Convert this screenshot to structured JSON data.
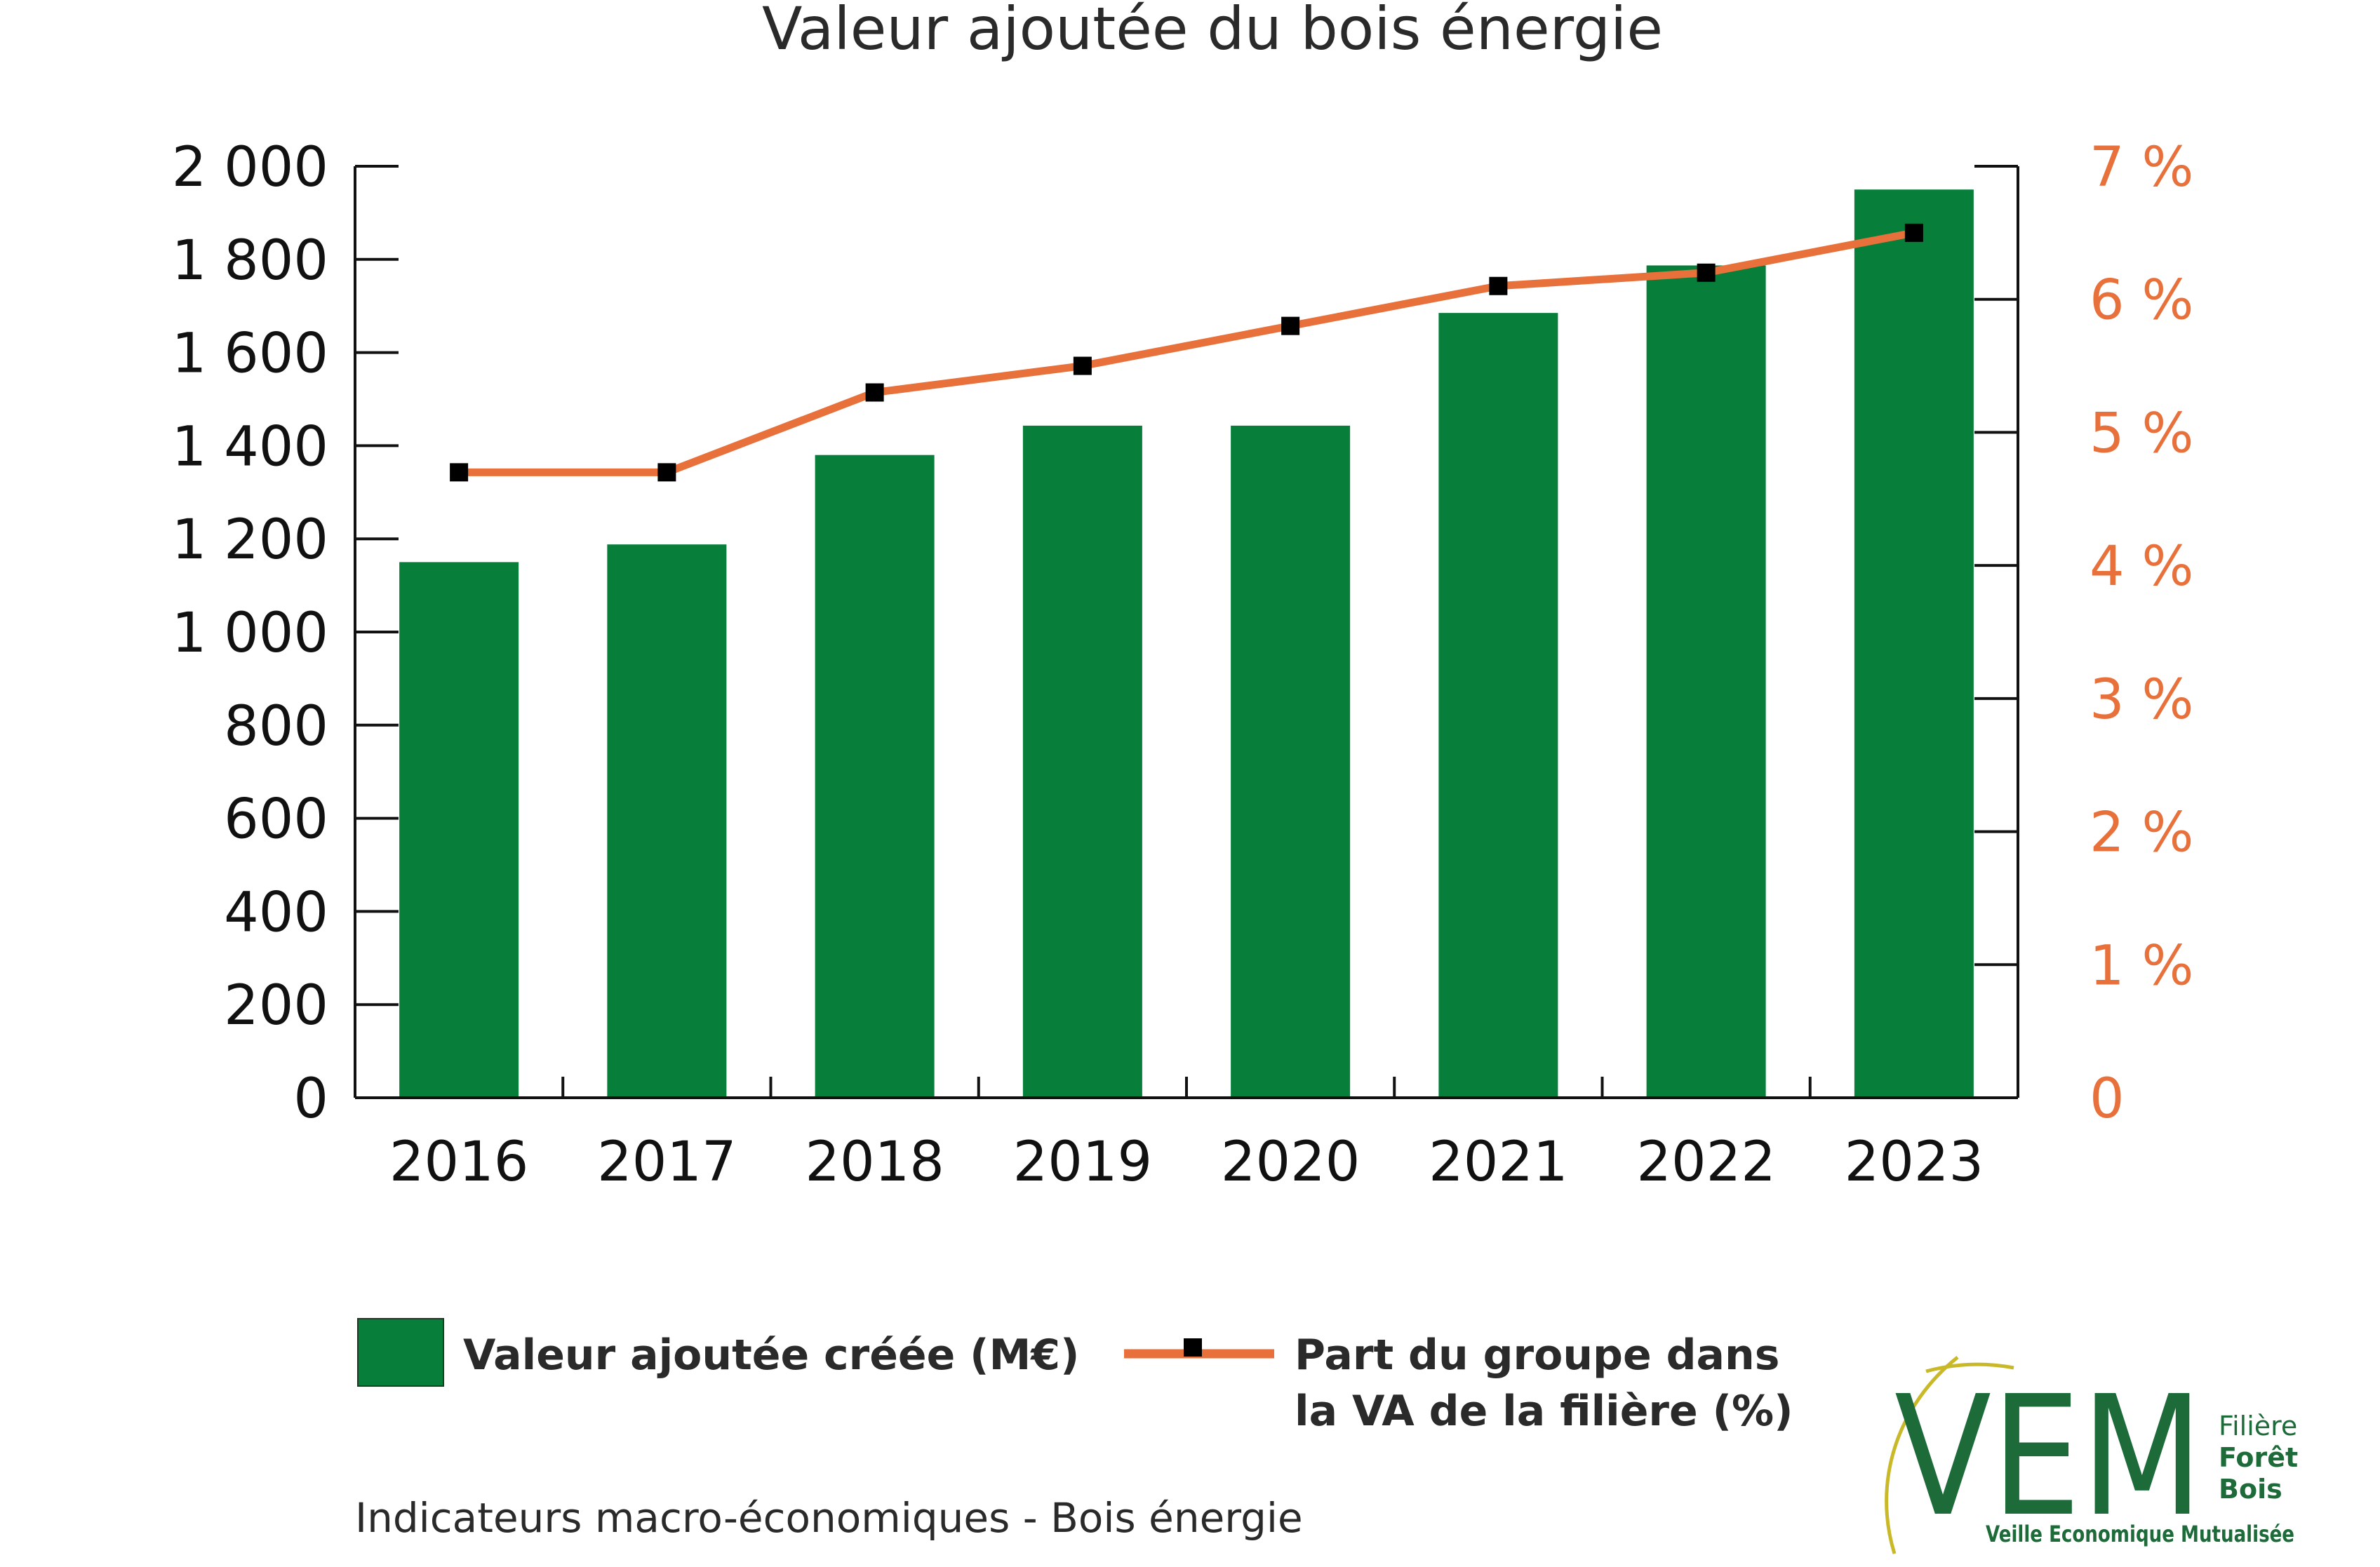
{
  "chart_data": {
    "type": "bar",
    "title": "Valeur ajoutée du bois énergie",
    "categories": [
      "2016",
      "2017",
      "2018",
      "2019",
      "2020",
      "2021",
      "2022",
      "2023"
    ],
    "series": [
      {
        "name": "Valeur ajoutée créée (M€)",
        "type": "bar",
        "axis": "left",
        "color": "#077f3a",
        "values": [
          1150,
          1188,
          1380,
          1443,
          1443,
          1685,
          1787,
          1950
        ]
      },
      {
        "name": "Part du groupe dans la VA de la filière (%)",
        "type": "line",
        "axis": "right",
        "color": "#e8703a",
        "marker_color": "#000000",
        "values": [
          4.7,
          4.7,
          5.3,
          5.5,
          5.8,
          6.1,
          6.2,
          6.5
        ]
      }
    ],
    "y_left": {
      "ylim": [
        0,
        2000
      ],
      "ticks": [
        0,
        200,
        400,
        600,
        800,
        1000,
        1200,
        1400,
        1600,
        1800,
        2000
      ],
      "tick_labels": [
        "0",
        "200",
        "400",
        "600",
        "800",
        "1 000",
        "1 200",
        "1 400",
        "1 600",
        "1 800",
        "2 000"
      ]
    },
    "y_right": {
      "ylim": [
        0,
        7
      ],
      "ticks": [
        0,
        1,
        2,
        3,
        4,
        5,
        6,
        7
      ],
      "tick_labels": [
        "0",
        "1 %",
        "2 %",
        "3 %",
        "4 %",
        "5 %",
        "6 %",
        "7 %"
      ],
      "color": "#e8703a"
    },
    "xlabel": "",
    "ylabel": "",
    "grid": false,
    "legend": {
      "placement": "bottom",
      "entries": [
        {
          "label_lines": [
            "Valeur ajoutée créée (M€)"
          ]
        },
        {
          "label_lines": [
            "Part du groupe dans",
            "la VA de la filière (%)"
          ]
        }
      ]
    }
  },
  "footer": {
    "caption": "Indicateurs macro-économiques - Bois énergie"
  },
  "logo": {
    "text": "VEM",
    "lines": [
      "Filière",
      "Forêt",
      "Bois"
    ],
    "subtitle": "Veille Economique Mutualisée",
    "color": "#1e6b3a",
    "ring_color": "#c9b928"
  }
}
